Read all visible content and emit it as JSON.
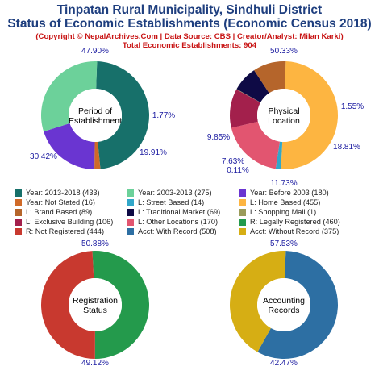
{
  "title_line1": "Tinpatan Rural Municipality, Sindhuli District",
  "title_line2": "Status of Economic Establishments (Economic Census 2018)",
  "subtitle": "(Copyright © NepalArchives.Com | Data Source: CBS | Creator/Analyst: Milan Karki)",
  "total_line": "Total Economic Establishments: 904",
  "legend": [
    {
      "label": "Year: 2013-2018 (433)",
      "color": "#17706a"
    },
    {
      "label": "Year: 2003-2013 (275)",
      "color": "#6cd19a"
    },
    {
      "label": "Year: Before 2003 (180)",
      "color": "#6a35d1"
    },
    {
      "label": "Year: Not Stated (16)",
      "color": "#d06a28"
    },
    {
      "label": "L: Street Based (14)",
      "color": "#31a7c9"
    },
    {
      "label": "L: Home Based (455)",
      "color": "#fdb541"
    },
    {
      "label": "L: Brand Based (89)",
      "color": "#b5652b"
    },
    {
      "label": "L: Traditional Market (69)",
      "color": "#0e0a45"
    },
    {
      "label": "L: Shopping Mall (1)",
      "color": "#9b9b5a"
    },
    {
      "label": "L: Exclusive Building (106)",
      "color": "#a3204c"
    },
    {
      "label": "L: Other Locations (170)",
      "color": "#e25570"
    },
    {
      "label": "R: Legally Registered (460)",
      "color": "#249a4c"
    },
    {
      "label": "R: Not Registered (444)",
      "color": "#c8392f"
    },
    {
      "label": "Acct: With Record (508)",
      "color": "#2d6fa3"
    },
    {
      "label": "Acct: Without Record (375)",
      "color": "#d6ae14"
    }
  ],
  "chart_data": [
    {
      "type": "pie",
      "center_label": [
        "Period of",
        "Establishment"
      ],
      "slices": [
        {
          "name": "Year: 2013-2018",
          "value": 433,
          "pct_label": "47.90%",
          "color": "#17706a"
        },
        {
          "name": "Year: Not Stated",
          "value": 16,
          "pct_label": "1.77%",
          "color": "#d06a28"
        },
        {
          "name": "Year: Before 2003",
          "value": 180,
          "pct_label": "19.91%",
          "color": "#6a35d1"
        },
        {
          "name": "Year: 2003-2013",
          "value": 275,
          "pct_label": "30.42%",
          "color": "#6cd19a"
        }
      ]
    },
    {
      "type": "pie",
      "center_label": [
        "Physical",
        "Location"
      ],
      "slices": [
        {
          "name": "L: Home Based",
          "value": 455,
          "pct_label": "50.33%",
          "color": "#fdb541"
        },
        {
          "name": "L: Street Based",
          "value": 14,
          "pct_label": "1.55%",
          "color": "#31a7c9"
        },
        {
          "name": "L: Other Locations",
          "value": 170,
          "pct_label": "18.81%",
          "color": "#e25570"
        },
        {
          "name": "L: Exclusive Building",
          "value": 106,
          "pct_label": "11.73%",
          "color": "#a3204c"
        },
        {
          "name": "L: Shopping Mall",
          "value": 1,
          "pct_label": "0.11%",
          "color": "#9b9b5a"
        },
        {
          "name": "L: Traditional Market",
          "value": 69,
          "pct_label": "7.63%",
          "color": "#0e0a45"
        },
        {
          "name": "L: Brand Based",
          "value": 89,
          "pct_label": "9.85%",
          "color": "#b5652b"
        }
      ]
    },
    {
      "type": "pie",
      "center_label": [
        "Registration",
        "Status"
      ],
      "slices": [
        {
          "name": "R: Legally Registered",
          "value": 460,
          "pct_label": "50.88%",
          "color": "#249a4c"
        },
        {
          "name": "R: Not Registered",
          "value": 444,
          "pct_label": "49.12%",
          "color": "#c8392f"
        }
      ]
    },
    {
      "type": "pie",
      "center_label": [
        "Accounting",
        "Records"
      ],
      "slices": [
        {
          "name": "Acct: With Record",
          "value": 508,
          "pct_label": "57.53%",
          "color": "#2d6fa3"
        },
        {
          "name": "Acct: Without Record",
          "value": 375,
          "pct_label": "42.47%",
          "color": "#d6ae14"
        }
      ]
    }
  ]
}
